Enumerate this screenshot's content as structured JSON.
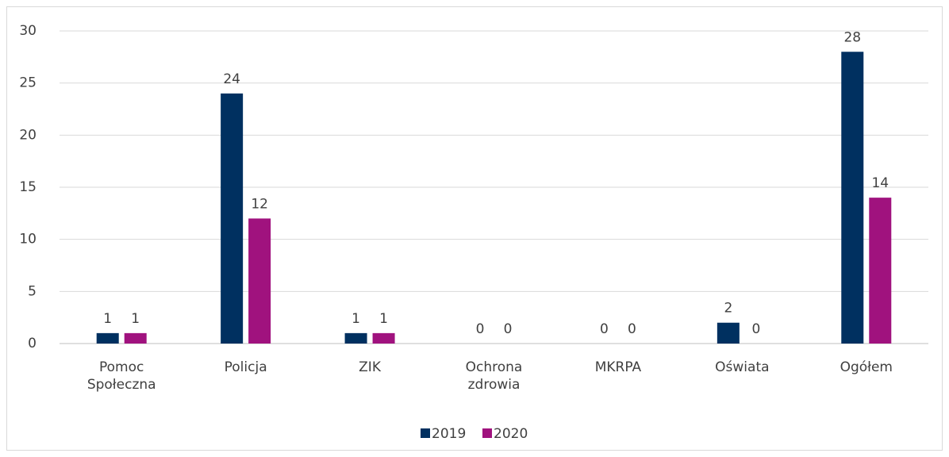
{
  "chart_data": {
    "type": "bar",
    "categories": [
      "Pomoc Społeczna",
      "Policja",
      "ZIK",
      "Ochrona zdrowia",
      "MKRPA",
      "Oświata",
      "Ogółem"
    ],
    "series": [
      {
        "name": "2019",
        "color": "#003060",
        "values": [
          1,
          24,
          1,
          0,
          0,
          2,
          28
        ]
      },
      {
        "name": "2020",
        "color": "#a0127e",
        "values": [
          1,
          12,
          1,
          0,
          0,
          0,
          14
        ]
      }
    ],
    "ylim": [
      0,
      30
    ],
    "yticks": [
      0,
      5,
      10,
      15,
      20,
      25,
      30
    ],
    "grid": true,
    "legend": "bottom"
  }
}
